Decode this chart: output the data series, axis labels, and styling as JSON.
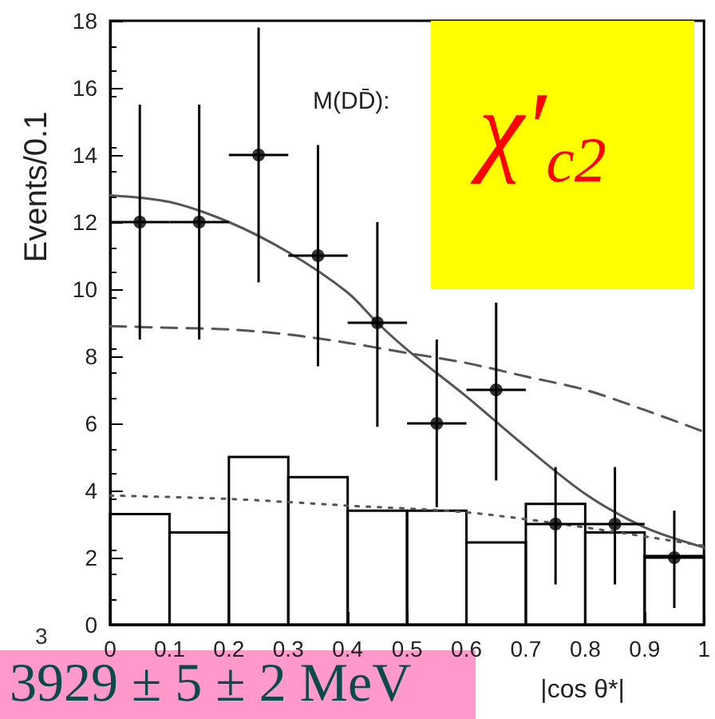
{
  "chart_data": {
    "type": "scatter",
    "xlabel": "|cos θ*|",
    "ylabel": "Events/0.1",
    "xlim": [
      0,
      1
    ],
    "xticks": [
      0,
      0.1,
      0.2,
      0.3,
      0.4,
      0.5,
      0.6,
      0.7,
      0.8,
      0.9,
      1
    ],
    "ylim": [
      0,
      18
    ],
    "yticks": [
      0,
      2,
      4,
      6,
      8,
      10,
      12,
      14,
      16,
      18
    ],
    "annotations": [
      "M(DD̄):",
      "χ′$_{c2}$",
      "3929 ± 5 ± 2 MeV",
      "3"
    ],
    "series": [
      {
        "type": "histogram",
        "color": "#000000",
        "bins": [
          0,
          0.1,
          0.2,
          0.3,
          0.4,
          0.5,
          0.6,
          0.7,
          0.8,
          0.9,
          1
        ],
        "values": [
          3.3,
          2.75,
          5,
          4.4,
          3.4,
          3.4,
          2.45,
          3.6,
          2.75,
          2.05
        ]
      },
      {
        "type": "line",
        "line_style": "solid",
        "color": "#555555",
        "x": [
          0,
          0.1,
          0.2,
          0.3,
          0.4,
          0.45,
          0.5,
          0.6,
          0.7,
          0.8,
          0.9,
          1
        ],
        "values": [
          12.8,
          12.6,
          12,
          11.1,
          9.9,
          9,
          8.2,
          6.8,
          5.3,
          3.9,
          2.9,
          2.3
        ]
      },
      {
        "type": "line",
        "line_style": "dashed",
        "color": "#555555",
        "x": [
          0,
          0.1,
          0.2,
          0.3,
          0.4,
          0.5,
          0.6,
          0.7,
          0.8,
          0.9,
          1
        ],
        "values": [
          8.9,
          8.85,
          8.8,
          8.65,
          8.4,
          8.1,
          7.8,
          7.4,
          7,
          6.4,
          5.75
        ]
      },
      {
        "type": "line",
        "line_style": "dotted",
        "color": "#555555",
        "x": [
          0,
          0.2,
          0.4,
          0.6,
          0.8,
          1
        ],
        "values": [
          3.85,
          3.75,
          3.55,
          3.35,
          2.9,
          2.35
        ]
      },
      {
        "marker": "circle",
        "color": "#000000",
        "x": [
          0.05,
          0.15,
          0.25,
          0.35,
          0.45,
          0.55,
          0.65,
          0.75,
          0.85,
          0.95
        ],
        "values": [
          12,
          12,
          14,
          11,
          9,
          6,
          7,
          3,
          3,
          2
        ],
        "errors": [
          [
            8.5,
            15.5
          ],
          [
            8.5,
            15.5
          ],
          [
            10.2,
            17.8
          ],
          [
            7.7,
            14.3
          ],
          [
            5.9,
            12
          ],
          [
            3.5,
            8.5
          ],
          [
            4.3,
            9.6
          ],
          [
            1.2,
            4.7
          ],
          [
            1.2,
            4.7
          ],
          [
            0.5,
            3.4
          ]
        ],
        "xerrors": [
          0.05,
          0.05,
          0.05,
          0.05,
          0.05,
          0.05,
          0.05,
          0.05,
          0.05,
          0.05
        ]
      }
    ]
  }
}
